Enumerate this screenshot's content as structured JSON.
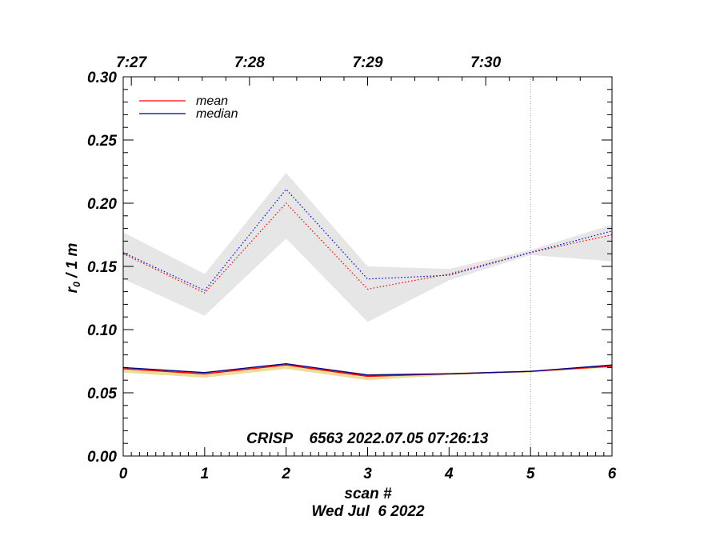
{
  "chart_data": {
    "type": "line",
    "xlabel": "scan #",
    "ylabel_main": "r",
    "ylabel_sub": "0",
    "ylabel_rest": " / 1 m",
    "date_label": "Wed Jul  6 2022",
    "annotation": "CRISP    6563 2022.07.05 07:26:13",
    "xlim": [
      0,
      6
    ],
    "ylim": [
      0.0,
      0.3
    ],
    "x_ticks": [
      0,
      1,
      2,
      3,
      4,
      5,
      6
    ],
    "x_tick_labels": [
      "0",
      "1",
      "2",
      "3",
      "4",
      "5",
      "6"
    ],
    "y_ticks": [
      0.0,
      0.05,
      0.1,
      0.15,
      0.2,
      0.25,
      0.3
    ],
    "y_tick_labels": [
      "0.00",
      "0.05",
      "0.10",
      "0.15",
      "0.20",
      "0.25",
      "0.30"
    ],
    "top_axis": {
      "labels": [
        "7:27",
        "7:28",
        "7:29",
        "7:30"
      ],
      "scan_positions": [
        0.1,
        1.55,
        3.0,
        4.45
      ]
    },
    "vertical_reference_x": 5,
    "x": [
      0,
      1,
      2,
      3,
      4,
      5,
      6
    ],
    "legend": {
      "position": "top-left",
      "entries": [
        {
          "label": "mean",
          "color": "#ff0000"
        },
        {
          "label": "median",
          "color": "#00008b"
        }
      ]
    },
    "series": [
      {
        "name": "mean",
        "group": "upper",
        "style": "dotted",
        "color": "#ff0000",
        "values": [
          0.16,
          0.129,
          0.2,
          0.132,
          0.144,
          0.161,
          0.175
        ]
      },
      {
        "name": "median",
        "group": "upper",
        "style": "dotted",
        "color": "#0000ff",
        "values": [
          0.161,
          0.131,
          0.211,
          0.14,
          0.143,
          0.161,
          0.178
        ]
      },
      {
        "name": "mean",
        "group": "lower",
        "style": "solid",
        "color": "#ff0000",
        "values": [
          0.069,
          0.065,
          0.072,
          0.063,
          0.065,
          0.067,
          0.071
        ]
      },
      {
        "name": "median",
        "group": "lower",
        "style": "solid",
        "color": "#00008b",
        "values": [
          0.07,
          0.066,
          0.073,
          0.064,
          0.065,
          0.067,
          0.072
        ]
      }
    ],
    "bands": [
      {
        "group": "upper",
        "color": "#e6e6e6",
        "lower": [
          0.14,
          0.111,
          0.172,
          0.106,
          0.139,
          0.159,
          0.154
        ],
        "upper": [
          0.177,
          0.144,
          0.224,
          0.15,
          0.148,
          0.163,
          0.183
        ]
      },
      {
        "group": "lower",
        "color": "#eedd99",
        "lower": [
          0.066,
          0.062,
          0.069,
          0.06,
          0.064,
          0.066,
          0.07
        ],
        "upper": [
          0.07,
          0.066,
          0.073,
          0.065,
          0.066,
          0.067,
          0.072
        ]
      }
    ],
    "grid": false
  }
}
